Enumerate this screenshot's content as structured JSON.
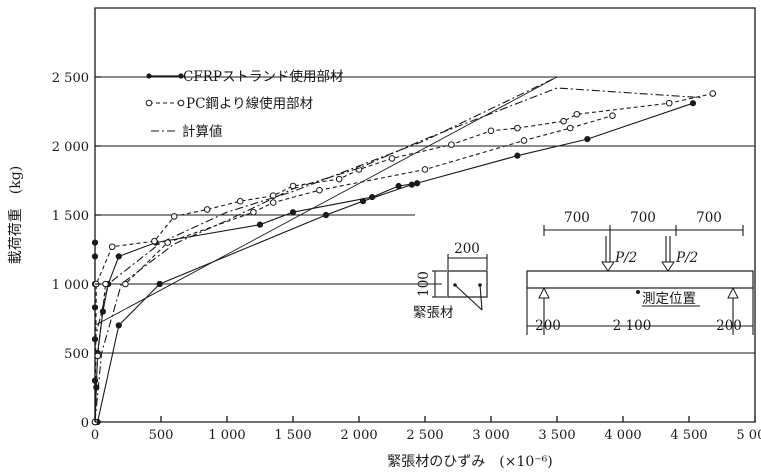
{
  "chart_data": {
    "type": "line",
    "title": "",
    "xlabel": "緊張材のひずみ　(×10⁻⁶)",
    "ylabel": "載荷荷重　(kg)",
    "xlim": [
      0,
      5000
    ],
    "ylim": [
      0,
      3000
    ],
    "x_ticks": [
      0,
      500,
      1000,
      1500,
      2000,
      2500,
      3000,
      3500,
      4000,
      4500,
      5000
    ],
    "x_tick_labels": [
      "0",
      "500",
      "1 000",
      "1 500",
      "2 000",
      "2 500",
      "3 000",
      "3 500",
      "4 000",
      "4 500",
      "5 000"
    ],
    "y_ticks": [
      0,
      500,
      1000,
      1500,
      2000,
      2500
    ],
    "y_tick_labels": [
      "0",
      "500",
      "1 000",
      "1 500",
      "2 000",
      "2 500"
    ],
    "grid": "partial",
    "legend_position": "top-left",
    "series": [
      {
        "name": "CFRPストランド使用部材",
        "marker": "filled-circle",
        "line_style": "solid",
        "curves": [
          [
            [
              0,
              0
            ],
            [
              0,
              300
            ],
            [
              0,
              600
            ],
            [
              0,
              830
            ],
            [
              0,
              1000
            ],
            [
              0,
              1200
            ],
            [
              0,
              1300
            ]
          ],
          [
            [
              20,
              0
            ],
            [
              180,
              700
            ],
            [
              490,
              1000
            ],
            [
              1750,
              1500
            ],
            [
              2030,
              1600
            ],
            [
              2400,
              1720
            ],
            [
              3200,
              1930
            ],
            [
              3730,
              2050
            ],
            [
              4530,
              2310
            ]
          ],
          [
            [
              0,
              0
            ],
            [
              10,
              250
            ],
            [
              20,
              500
            ],
            [
              60,
              800
            ],
            [
              100,
              1000
            ],
            [
              180,
              1200
            ],
            [
              460,
              1300
            ],
            [
              1250,
              1430
            ],
            [
              1500,
              1520
            ],
            [
              2100,
              1630
            ],
            [
              2300,
              1710
            ],
            [
              2440,
              1730
            ]
          ]
        ]
      },
      {
        "name": "PC鋼より線使用部材",
        "marker": "open-circle",
        "line_style": "dashed",
        "curves": [
          [
            [
              0,
              0
            ],
            [
              10,
              1000
            ],
            [
              130,
              1270
            ],
            [
              450,
              1310
            ],
            [
              600,
              1490
            ],
            [
              850,
              1540
            ],
            [
              1100,
              1600
            ],
            [
              1350,
              1640
            ],
            [
              1500,
              1710
            ],
            [
              1850,
              1760
            ],
            [
              2000,
              1830
            ],
            [
              2250,
              1910
            ],
            [
              2700,
              2010
            ],
            [
              3000,
              2110
            ],
            [
              3200,
              2130
            ],
            [
              3550,
              2180
            ],
            [
              3650,
              2230
            ],
            [
              4350,
              2310
            ],
            [
              4680,
              2380
            ]
          ],
          [
            [
              0,
              0
            ],
            [
              20,
              480
            ],
            [
              80,
              1000
            ],
            [
              230,
              1000
            ],
            [
              550,
              1300
            ],
            [
              1200,
              1520
            ],
            [
              1350,
              1590
            ],
            [
              1700,
              1680
            ],
            [
              2500,
              1830
            ],
            [
              3250,
              2040
            ],
            [
              3600,
              2130
            ],
            [
              3920,
              2220
            ]
          ]
        ]
      },
      {
        "name": "計算値",
        "marker": "none",
        "line_style": "dash-dot",
        "curves": [
          [
            [
              0,
              0
            ],
            [
              0,
              600
            ],
            [
              100,
              1000
            ],
            [
              500,
              1300
            ],
            [
              1000,
              1520
            ],
            [
              1500,
              1670
            ],
            [
              2500,
              2040
            ],
            [
              3500,
              2500
            ]
          ],
          [
            [
              0,
              0
            ],
            [
              50,
              500
            ],
            [
              200,
              1000
            ],
            [
              600,
              1290
            ],
            [
              1000,
              1460
            ],
            [
              1500,
              1690
            ],
            [
              2000,
              1840
            ],
            [
              2500,
              2050
            ],
            [
              3500,
              2420
            ],
            [
              4600,
              2350
            ]
          ]
        ]
      }
    ],
    "reference_lines": [
      [
        [
          0,
          700
        ],
        [
          3500,
          2500
        ]
      ]
    ]
  },
  "inset": {
    "section_width": "200",
    "section_height": "100",
    "tendon_label": "緊張材",
    "span_a": "700",
    "span_b": "700",
    "span_c": "700",
    "load_left": "P/2",
    "load_right": "P/2",
    "measure_label": "測定位置",
    "overhang_left": "200",
    "total_span": "2 100",
    "overhang_right": "200"
  }
}
